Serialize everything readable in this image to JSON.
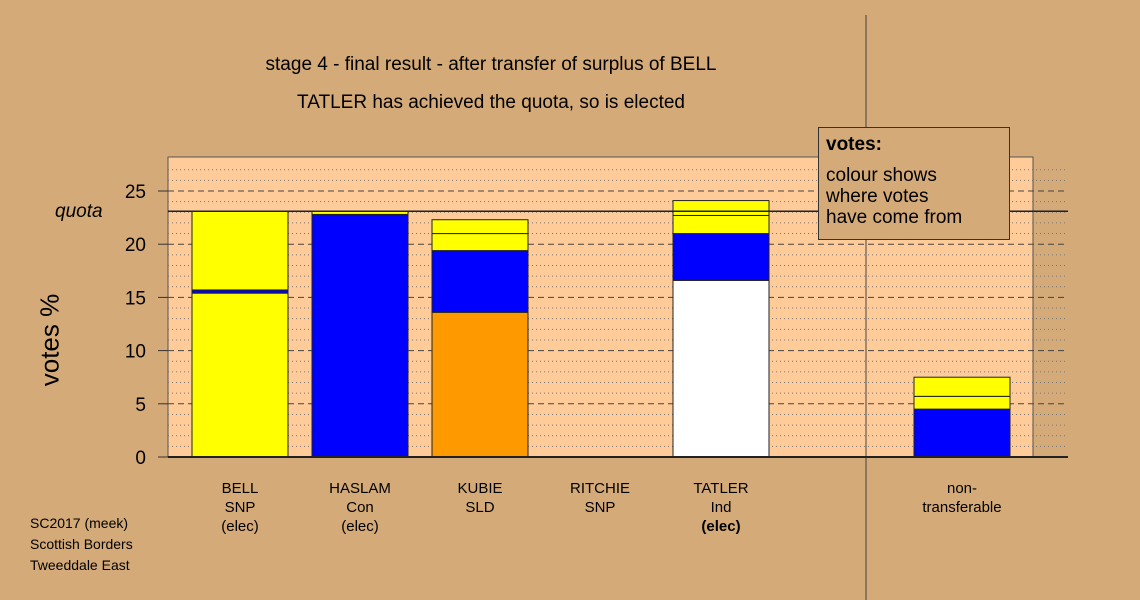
{
  "titles": {
    "line1": "stage 4 - final result - after transfer of surplus of BELL",
    "line2": "TATLER has achieved the quota, so is elected"
  },
  "legend": {
    "title": "votes:",
    "text": "colour shows\nwhere votes\nhave come from"
  },
  "footer": "SC2017 (meek)\nScottish Borders\nTweeddale East",
  "candidates": [
    {
      "name": "BELL",
      "party": "SNP",
      "status": "(elec)"
    },
    {
      "name": "HASLAM",
      "party": "Con",
      "status": "(elec)"
    },
    {
      "name": "KUBIE",
      "party": "SLD",
      "status": ""
    },
    {
      "name": "RITCHIE",
      "party": "SNP",
      "status": ""
    },
    {
      "name": "TATLER",
      "party": "Ind",
      "status": "(elec)"
    }
  ],
  "nontransferable_label": "non-\ntransferable",
  "colors": {
    "background": "#d4aa78",
    "plot_area": "#ffcc99",
    "snp": "#ffff00",
    "con": "#0000ff",
    "sld": "#ff9900",
    "ind": "#ffffff"
  },
  "chart_data": {
    "type": "bar",
    "stacked": true,
    "ylabel": "votes %",
    "ylim": [
      0,
      28
    ],
    "yticks": [
      0,
      5,
      10,
      15,
      20,
      25
    ],
    "quota": 23.1,
    "quota_label": "quota",
    "grid": "dashed major, dotted minor",
    "categories": [
      "BELL",
      "HASLAM",
      "KUBIE",
      "RITCHIE",
      "TATLER",
      "non-transferable"
    ],
    "bars": [
      {
        "category": "BELL",
        "segments": [
          {
            "value": 15.4,
            "color": "#ffff00"
          },
          {
            "value": 0.3,
            "color": "#0000ff"
          },
          {
            "value": 7.4,
            "color": "#ffff00"
          }
        ]
      },
      {
        "category": "HASLAM",
        "segments": [
          {
            "value": 22.8,
            "color": "#0000ff"
          },
          {
            "value": 0.3,
            "color": "#ffff00"
          }
        ]
      },
      {
        "category": "KUBIE",
        "segments": [
          {
            "value": 13.6,
            "color": "#ff9900"
          },
          {
            "value": 5.8,
            "color": "#0000ff"
          },
          {
            "value": 1.6,
            "color": "#ffff00"
          },
          {
            "value": 1.3,
            "color": "#ffff00"
          }
        ]
      },
      {
        "category": "RITCHIE",
        "segments": []
      },
      {
        "category": "TATLER",
        "segments": [
          {
            "value": 16.6,
            "color": "#ffffff"
          },
          {
            "value": 4.4,
            "color": "#0000ff"
          },
          {
            "value": 1.7,
            "color": "#ffff00"
          },
          {
            "value": 1.4,
            "color": "#ffff00"
          }
        ]
      },
      {
        "category": "non-transferable",
        "segments": [
          {
            "value": 4.5,
            "color": "#0000ff"
          },
          {
            "value": 1.2,
            "color": "#ffff00"
          },
          {
            "value": 1.8,
            "color": "#ffff00"
          }
        ]
      }
    ]
  }
}
